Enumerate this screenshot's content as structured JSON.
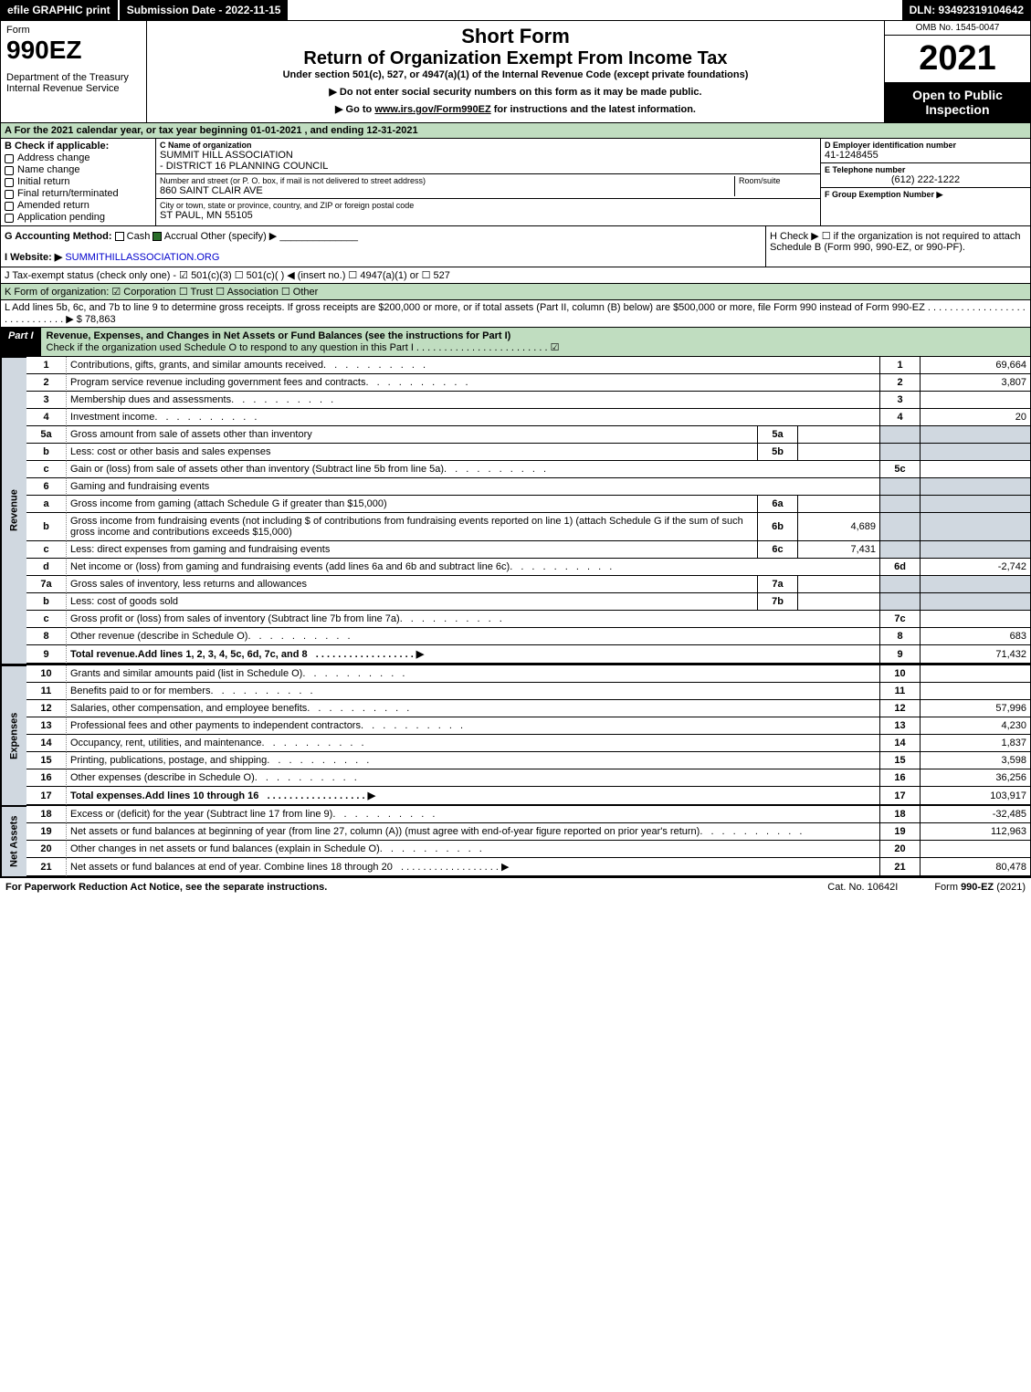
{
  "topbar": {
    "efile": "efile GRAPHIC print",
    "submission": "Submission Date - 2022-11-15",
    "dln": "DLN: 93492319104642"
  },
  "header": {
    "form_label": "Form",
    "form_number": "990EZ",
    "dept": "Department of the Treasury\nInternal Revenue Service",
    "title1": "Short Form",
    "title2": "Return of Organization Exempt From Income Tax",
    "subtitle": "Under section 501(c), 527, or 4947(a)(1) of the Internal Revenue Code (except private foundations)",
    "directive1": "▶ Do not enter social security numbers on this form as it may be made public.",
    "directive2": "▶ Go to www.irs.gov/Form990EZ for instructions and the latest information.",
    "omb": "OMB No. 1545-0047",
    "year": "2021",
    "open": "Open to Public Inspection"
  },
  "rowA": "A  For the 2021 calendar year, or tax year beginning 01-01-2021 , and ending 12-31-2021",
  "blockB": {
    "label": "B  Check if applicable:",
    "checks": [
      "Address change",
      "Name change",
      "Initial return",
      "Final return/terminated",
      "Amended return",
      "Application pending"
    ],
    "c_label": "C Name of organization",
    "c_name": "SUMMIT HILL ASSOCIATION\n- DISTRICT 16 PLANNING COUNCIL",
    "street_label": "Number and street (or P. O. box, if mail is not delivered to street address)",
    "room_label": "Room/suite",
    "street": "860 SAINT CLAIR AVE",
    "city_label": "City or town, state or province, country, and ZIP or foreign postal code",
    "city": "ST PAUL, MN  55105",
    "d_label": "D Employer identification number",
    "d_val": "41-1248455",
    "e_label": "E Telephone number",
    "e_val": "(612) 222-1222",
    "f_label": "F Group Exemption Number  ▶"
  },
  "rowG": {
    "label": "G Accounting Method:",
    "cash": "Cash",
    "accrual": "Accrual",
    "other": "Other (specify) ▶",
    "h": "H  Check ▶ ☐ if the organization is not required to attach Schedule B (Form 990, 990-EZ, or 990-PF)."
  },
  "rowI": {
    "label": "I Website: ▶",
    "val": "SUMMITHILLASSOCIATION.ORG"
  },
  "rowJ": "J Tax-exempt status (check only one) - ☑ 501(c)(3) ☐ 501(c)(  ) ◀ (insert no.) ☐ 4947(a)(1) or ☐ 527",
  "rowK": "K Form of organization: ☑ Corporation  ☐ Trust  ☐ Association  ☐ Other",
  "rowL": {
    "text": "L Add lines 5b, 6c, and 7b to line 9 to determine gross receipts. If gross receipts are $200,000 or more, or if total assets (Part II, column (B) below) are $500,000 or more, file Form 990 instead of Form 990-EZ . . . . . . . . . . . . . . . . . . . . . . . . . . . . . ▶ $",
    "val": "78,863"
  },
  "part1": {
    "tab": "Part I",
    "title": "Revenue, Expenses, and Changes in Net Assets or Fund Balances (see the instructions for Part I)",
    "check_line": "Check if the organization used Schedule O to respond to any question in this Part I . . . . . . . . . . . . . . . . . . . . . . . . ☑"
  },
  "sections": {
    "revenue": "Revenue",
    "expenses": "Expenses",
    "netassets": "Net Assets"
  },
  "lines": [
    {
      "n": "1",
      "d": "Contributions, gifts, grants, and similar amounts received",
      "rn": "1",
      "rv": "69,664"
    },
    {
      "n": "2",
      "d": "Program service revenue including government fees and contracts",
      "rn": "2",
      "rv": "3,807"
    },
    {
      "n": "3",
      "d": "Membership dues and assessments",
      "rn": "3",
      "rv": ""
    },
    {
      "n": "4",
      "d": "Investment income",
      "rn": "4",
      "rv": "20"
    },
    {
      "n": "5a",
      "d": "Gross amount from sale of assets other than inventory",
      "mn": "5a",
      "mv": "",
      "rn": "",
      "rv": "",
      "shade": true
    },
    {
      "n": "b",
      "d": "Less: cost or other basis and sales expenses",
      "mn": "5b",
      "mv": "",
      "rn": "",
      "rv": "",
      "shade": true
    },
    {
      "n": "c",
      "d": "Gain or (loss) from sale of assets other than inventory (Subtract line 5b from line 5a)",
      "rn": "5c",
      "rv": ""
    },
    {
      "n": "6",
      "d": "Gaming and fundraising events",
      "rn": "",
      "rv": "",
      "shade": true,
      "span": true
    },
    {
      "n": "a",
      "d": "Gross income from gaming (attach Schedule G if greater than $15,000)",
      "mn": "6a",
      "mv": "",
      "rn": "",
      "rv": "",
      "shade": true
    },
    {
      "n": "b",
      "d": "Gross income from fundraising events (not including $                   of contributions from fundraising events reported on line 1) (attach Schedule G if the sum of such gross income and contributions exceeds $15,000)",
      "mn": "6b",
      "mv": "4,689",
      "rn": "",
      "rv": "",
      "shade": true
    },
    {
      "n": "c",
      "d": "Less: direct expenses from gaming and fundraising events",
      "mn": "6c",
      "mv": "7,431",
      "rn": "",
      "rv": "",
      "shade": true
    },
    {
      "n": "d",
      "d": "Net income or (loss) from gaming and fundraising events (add lines 6a and 6b and subtract line 6c)",
      "rn": "6d",
      "rv": "-2,742"
    },
    {
      "n": "7a",
      "d": "Gross sales of inventory, less returns and allowances",
      "mn": "7a",
      "mv": "",
      "rn": "",
      "rv": "",
      "shade": true
    },
    {
      "n": "b",
      "d": "Less: cost of goods sold",
      "mn": "7b",
      "mv": "",
      "rn": "",
      "rv": "",
      "shade": true
    },
    {
      "n": "c",
      "d": "Gross profit or (loss) from sales of inventory (Subtract line 7b from line 7a)",
      "rn": "7c",
      "rv": ""
    },
    {
      "n": "8",
      "d": "Other revenue (describe in Schedule O)",
      "rn": "8",
      "rv": "683"
    },
    {
      "n": "9",
      "d": "Total revenue. Add lines 1, 2, 3, 4, 5c, 6d, 7c, and 8",
      "rn": "9",
      "rv": "71,432",
      "bold": true,
      "arrow": true
    }
  ],
  "expenses": [
    {
      "n": "10",
      "d": "Grants and similar amounts paid (list in Schedule O)",
      "rn": "10",
      "rv": ""
    },
    {
      "n": "11",
      "d": "Benefits paid to or for members",
      "rn": "11",
      "rv": ""
    },
    {
      "n": "12",
      "d": "Salaries, other compensation, and employee benefits",
      "rn": "12",
      "rv": "57,996"
    },
    {
      "n": "13",
      "d": "Professional fees and other payments to independent contractors",
      "rn": "13",
      "rv": "4,230"
    },
    {
      "n": "14",
      "d": "Occupancy, rent, utilities, and maintenance",
      "rn": "14",
      "rv": "1,837"
    },
    {
      "n": "15",
      "d": "Printing, publications, postage, and shipping",
      "rn": "15",
      "rv": "3,598"
    },
    {
      "n": "16",
      "d": "Other expenses (describe in Schedule O)",
      "rn": "16",
      "rv": "36,256"
    },
    {
      "n": "17",
      "d": "Total expenses. Add lines 10 through 16",
      "rn": "17",
      "rv": "103,917",
      "bold": true,
      "arrow": true
    }
  ],
  "netassets": [
    {
      "n": "18",
      "d": "Excess or (deficit) for the year (Subtract line 17 from line 9)",
      "rn": "18",
      "rv": "-32,485"
    },
    {
      "n": "19",
      "d": "Net assets or fund balances at beginning of year (from line 27, column (A)) (must agree with end-of-year figure reported on prior year's return)",
      "rn": "19",
      "rv": "112,963"
    },
    {
      "n": "20",
      "d": "Other changes in net assets or fund balances (explain in Schedule O)",
      "rn": "20",
      "rv": ""
    },
    {
      "n": "21",
      "d": "Net assets or fund balances at end of year. Combine lines 18 through 20",
      "rn": "21",
      "rv": "80,478",
      "arrow": true
    }
  ],
  "footer": {
    "left": "For Paperwork Reduction Act Notice, see the separate instructions.",
    "mid": "Cat. No. 10642I",
    "right": "Form 990-EZ (2021)"
  }
}
